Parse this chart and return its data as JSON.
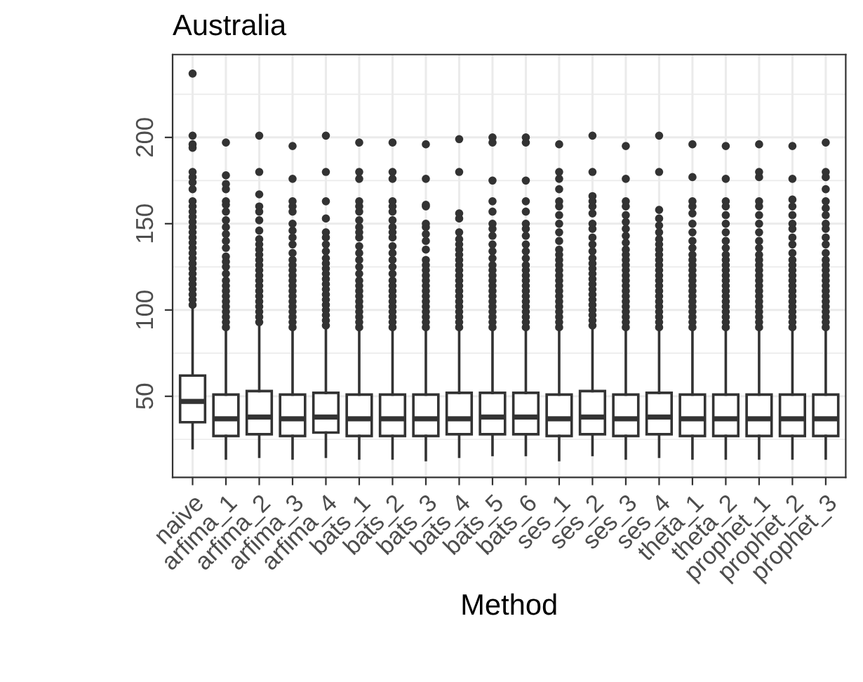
{
  "chart_data": {
    "type": "box",
    "title": "Australia",
    "xlabel": "Method",
    "categories": [
      "naive",
      "arfima_1",
      "arfima_2",
      "arfima_3",
      "arfima_4",
      "bats_1",
      "bats_2",
      "bats_3",
      "bats_4",
      "bats_5",
      "bats_6",
      "ses_1",
      "ses_2",
      "ses_3",
      "ses_4",
      "theta_1",
      "theta_2",
      "prophet_1",
      "prophet_2",
      "prophet_3"
    ],
    "boxes": [
      {
        "low": 20,
        "q1": 35,
        "median": 47,
        "q3": 62,
        "high": 101,
        "outliers": [
          103,
          106,
          109,
          112,
          115,
          118,
          121,
          124,
          127,
          130,
          133,
          136,
          139,
          142,
          145,
          148,
          151,
          154,
          157,
          160,
          163,
          170,
          174,
          177,
          180,
          194,
          196,
          201,
          237
        ]
      },
      {
        "low": 14,
        "q1": 27,
        "median": 37,
        "q3": 51,
        "high": 88,
        "outliers": [
          90,
          93,
          96,
          99,
          102,
          105,
          108,
          111,
          114,
          117,
          121,
          125,
          128,
          131,
          136,
          140,
          144,
          148,
          152,
          157,
          161,
          163,
          170,
          173,
          178,
          197
        ]
      },
      {
        "low": 15,
        "q1": 28,
        "median": 38,
        "q3": 53,
        "high": 91,
        "outliers": [
          93,
          96,
          99,
          102,
          105,
          108,
          111,
          114,
          117,
          120,
          123,
          126,
          129,
          132,
          135,
          138,
          141,
          146,
          152,
          157,
          160,
          167,
          180,
          201
        ]
      },
      {
        "low": 14,
        "q1": 27,
        "median": 37,
        "q3": 51,
        "high": 88,
        "outliers": [
          90,
          93,
          96,
          99,
          102,
          105,
          108,
          111,
          114,
          117,
          120,
          123,
          126,
          129,
          133,
          138,
          142,
          146,
          150,
          157,
          160,
          163,
          176,
          195
        ]
      },
      {
        "low": 15,
        "q1": 29,
        "median": 38,
        "q3": 52,
        "high": 89,
        "outliers": [
          91,
          94,
          97,
          100,
          103,
          106,
          109,
          112,
          115,
          118,
          121,
          124,
          127,
          130,
          134,
          138,
          142,
          145,
          153,
          163,
          180,
          201
        ]
      },
      {
        "low": 14,
        "q1": 27,
        "median": 37,
        "q3": 51,
        "high": 88,
        "outliers": [
          90,
          93,
          96,
          99,
          102,
          105,
          108,
          111,
          114,
          117,
          121,
          125,
          129,
          133,
          137,
          142,
          145,
          148,
          152,
          157,
          160,
          163,
          176,
          180,
          197
        ]
      },
      {
        "low": 14,
        "q1": 27,
        "median": 37,
        "q3": 51,
        "high": 88,
        "outliers": [
          90,
          93,
          96,
          99,
          102,
          105,
          108,
          111,
          114,
          117,
          121,
          125,
          129,
          133,
          137,
          142,
          145,
          148,
          152,
          157,
          160,
          163,
          176,
          180,
          197
        ]
      },
      {
        "low": 13,
        "q1": 27,
        "median": 37,
        "q3": 51,
        "high": 88,
        "outliers": [
          90,
          93,
          96,
          99,
          102,
          105,
          108,
          111,
          114,
          117,
          120,
          123,
          126,
          129,
          135,
          140,
          144,
          148,
          150,
          160,
          161,
          176,
          196
        ]
      },
      {
        "low": 15,
        "q1": 28,
        "median": 37,
        "q3": 52,
        "high": 88,
        "outliers": [
          90,
          93,
          96,
          99,
          102,
          105,
          108,
          111,
          114,
          117,
          120,
          123,
          126,
          129,
          132,
          135,
          138,
          141,
          145,
          153,
          156,
          180,
          199
        ]
      },
      {
        "low": 16,
        "q1": 28,
        "median": 38,
        "q3": 52,
        "high": 88,
        "outliers": [
          90,
          93,
          96,
          99,
          102,
          105,
          108,
          111,
          114,
          117,
          120,
          123,
          126,
          130,
          134,
          138,
          143,
          147,
          150,
          157,
          163,
          175,
          197,
          200
        ]
      },
      {
        "low": 16,
        "q1": 28,
        "median": 38,
        "q3": 52,
        "high": 88,
        "outliers": [
          90,
          93,
          96,
          99,
          102,
          105,
          108,
          111,
          114,
          117,
          120,
          123,
          126,
          130,
          134,
          138,
          143,
          147,
          150,
          157,
          163,
          175,
          197,
          200
        ]
      },
      {
        "low": 13,
        "q1": 27,
        "median": 37,
        "q3": 51,
        "high": 88,
        "outliers": [
          90,
          93,
          96,
          99,
          102,
          105,
          108,
          111,
          114,
          117,
          120,
          123,
          126,
          129,
          132,
          135,
          140,
          145,
          150,
          155,
          160,
          163,
          170,
          176,
          180,
          196
        ]
      },
      {
        "low": 16,
        "q1": 28,
        "median": 38,
        "q3": 53,
        "high": 89,
        "outliers": [
          91,
          94,
          97,
          100,
          103,
          106,
          109,
          112,
          115,
          118,
          121,
          124,
          127,
          130,
          134,
          138,
          142,
          147,
          150,
          156,
          160,
          163,
          166,
          180,
          201
        ]
      },
      {
        "low": 14,
        "q1": 27,
        "median": 37,
        "q3": 51,
        "high": 88,
        "outliers": [
          90,
          93,
          96,
          99,
          102,
          105,
          108,
          111,
          114,
          117,
          120,
          123,
          126,
          129,
          132,
          135,
          139,
          143,
          147,
          151,
          155,
          160,
          163,
          176,
          195
        ]
      },
      {
        "low": 15,
        "q1": 28,
        "median": 38,
        "q3": 52,
        "high": 88,
        "outliers": [
          90,
          93,
          96,
          99,
          102,
          105,
          108,
          111,
          114,
          117,
          120,
          123,
          126,
          129,
          132,
          135,
          138,
          141,
          145,
          149,
          153,
          158,
          180,
          201
        ]
      },
      {
        "low": 14,
        "q1": 27,
        "median": 37,
        "q3": 51,
        "high": 88,
        "outliers": [
          90,
          93,
          96,
          99,
          102,
          105,
          108,
          111,
          114,
          117,
          120,
          123,
          126,
          129,
          132,
          136,
          140,
          145,
          150,
          156,
          160,
          163,
          177,
          196
        ]
      },
      {
        "low": 14,
        "q1": 27,
        "median": 37,
        "q3": 51,
        "high": 88,
        "outliers": [
          90,
          93,
          96,
          99,
          102,
          105,
          108,
          111,
          114,
          117,
          120,
          123,
          126,
          129,
          132,
          136,
          140,
          145,
          150,
          155,
          160,
          163,
          176,
          195
        ]
      },
      {
        "low": 14,
        "q1": 27,
        "median": 37,
        "q3": 51,
        "high": 88,
        "outliers": [
          90,
          93,
          96,
          99,
          102,
          105,
          108,
          111,
          114,
          117,
          120,
          123,
          126,
          129,
          132,
          136,
          140,
          145,
          150,
          155,
          160,
          163,
          177,
          180,
          196
        ]
      },
      {
        "low": 14,
        "q1": 27,
        "median": 37,
        "q3": 51,
        "high": 88,
        "outliers": [
          90,
          93,
          96,
          99,
          102,
          105,
          108,
          111,
          114,
          117,
          120,
          123,
          126,
          129,
          133,
          138,
          142,
          147,
          150,
          155,
          160,
          164,
          176,
          195
        ]
      },
      {
        "low": 14,
        "q1": 27,
        "median": 37,
        "q3": 51,
        "high": 88,
        "outliers": [
          90,
          93,
          96,
          99,
          102,
          105,
          108,
          111,
          114,
          117,
          120,
          123,
          126,
          129,
          133,
          138,
          142,
          147,
          150,
          155,
          159,
          163,
          170,
          177,
          180,
          197
        ]
      }
    ],
    "color": "#333333",
    "ylim": [
      3,
      248
    ],
    "yticks": [
      50,
      100,
      150,
      200
    ],
    "grid": true
  }
}
